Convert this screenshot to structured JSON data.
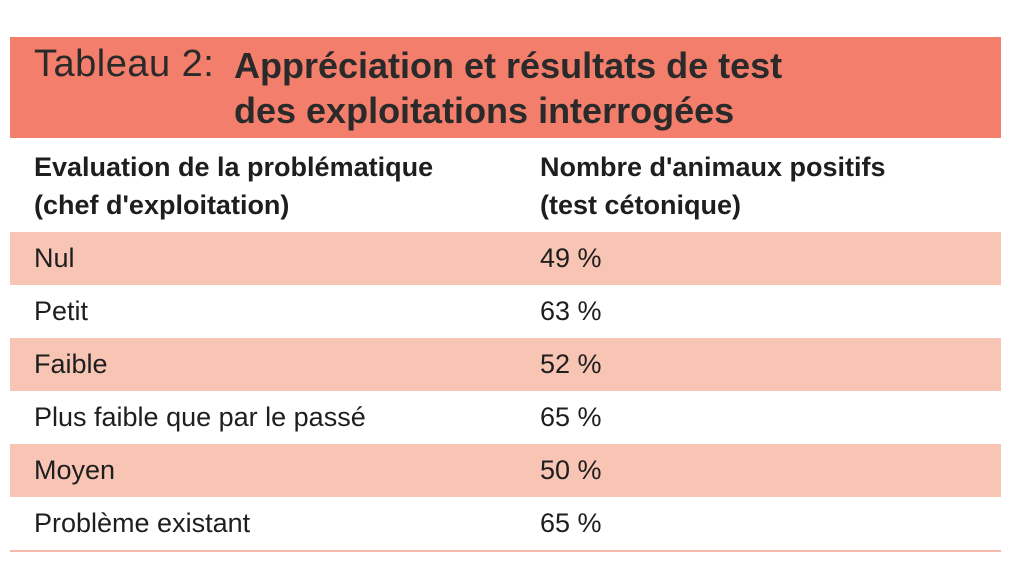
{
  "table": {
    "label": "Tableau 2:",
    "title_line1": "Appréciation et résultats de test",
    "title_line2": "des exploitations interrogées",
    "header": {
      "col1_line1": "Evaluation de la problématique",
      "col1_line2": "(chef d'exploitation)",
      "col2_line1": "Nombre d'animaux positifs",
      "col2_line2": "(test cétonique)"
    },
    "rows": [
      {
        "evaluation": "Nul",
        "positifs": "49 %"
      },
      {
        "evaluation": "Petit",
        "positifs": "63 %"
      },
      {
        "evaluation": "Faible",
        "positifs": "52 %"
      },
      {
        "evaluation": "Plus faible que par le passé",
        "positifs": "65 %"
      },
      {
        "evaluation": "Moyen",
        "positifs": "50 %"
      },
      {
        "evaluation": "Problème existant",
        "positifs": "65 %"
      }
    ]
  },
  "colors": {
    "title_bar": "#f27e6b",
    "shaded_row": "#f8c4b4",
    "rule": "#f3b9aa"
  }
}
